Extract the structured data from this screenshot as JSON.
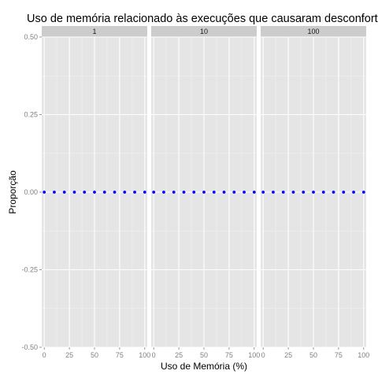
{
  "chart_data": {
    "type": "scatter",
    "title": "Uso de memória relacionado às execuções que causaram desconforto",
    "xlabel": "Uso de Memória (%)",
    "ylabel": "Proporção",
    "xlim": [
      -2.5,
      102.5
    ],
    "ylim": [
      -0.5,
      0.5
    ],
    "x_ticks": [
      0,
      25,
      50,
      75,
      100
    ],
    "x_tick_labels": [
      "0",
      "25",
      "50",
      "75",
      "100"
    ],
    "y_ticks": [
      -0.5,
      -0.25,
      0,
      0.25,
      0.5
    ],
    "y_tick_labels": [
      "-0.50",
      "-0.25",
      "0.00",
      "0.25",
      "0.50"
    ],
    "grid": true,
    "facets": [
      {
        "label": "1",
        "x": [
          0,
          10,
          20,
          30,
          40,
          50,
          60,
          70,
          80,
          90,
          100
        ],
        "y": [
          0,
          0,
          0,
          0,
          0,
          0,
          0,
          0,
          0,
          0,
          0
        ]
      },
      {
        "label": "10",
        "x": [
          0,
          10,
          20,
          30,
          40,
          50,
          60,
          70,
          80,
          90,
          100
        ],
        "y": [
          0,
          0,
          0,
          0,
          0,
          0,
          0,
          0,
          0,
          0,
          0
        ]
      },
      {
        "label": "100",
        "x": [
          0,
          10,
          20,
          30,
          40,
          50,
          60,
          70,
          80,
          90,
          100
        ],
        "y": [
          0,
          0,
          0,
          0,
          0,
          0,
          0,
          0,
          0,
          0,
          0
        ]
      }
    ],
    "colors": {
      "panel": "#e5e5e5",
      "strip": "#cccccc",
      "grid_major": "#ffffff",
      "grid_minor": "#f2f2f2",
      "point": "#0000ff"
    }
  }
}
